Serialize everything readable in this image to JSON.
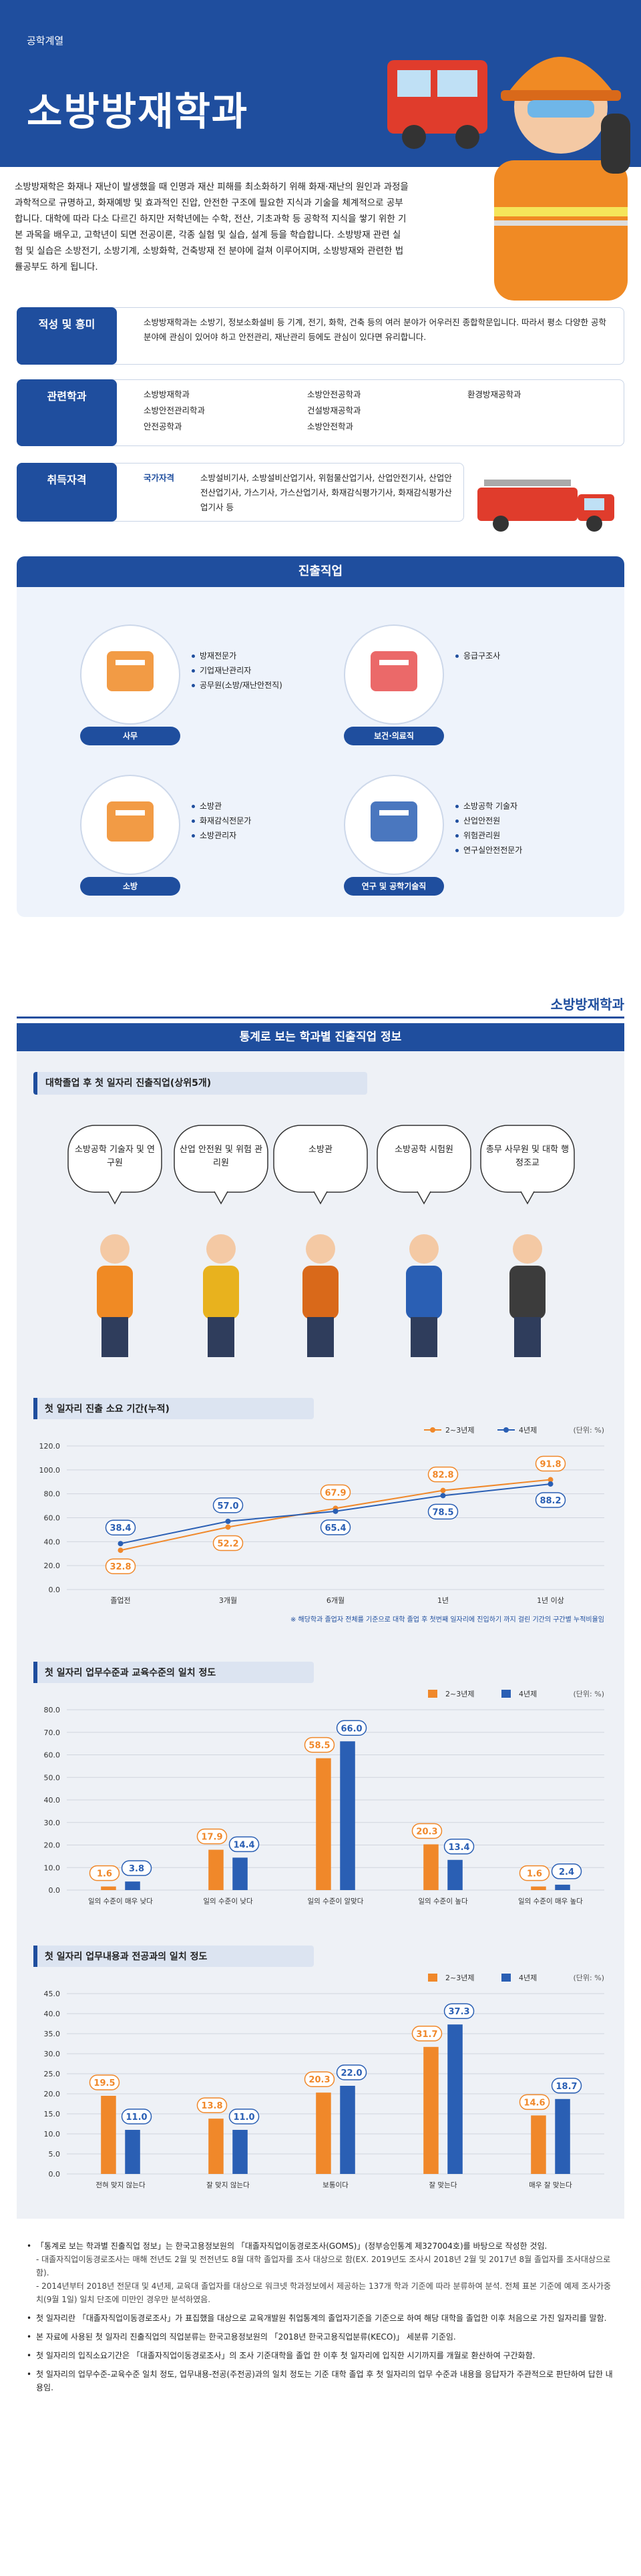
{
  "header": {
    "category": "공학계열",
    "title": "소방방재학과"
  },
  "intro": "소방방재학은 화재나 재난이 발생했을 때 인명과 재산 피해를 최소화하기 위해 화재·재난의 원인과 과정을 과학적으로 규명하고, 화재예방 및 효과적인 진압, 안전한 구조에 필요한 지식과 기술을 체계적으로 공부합니다. 대학에 따라 다소 다르긴 하지만 저학년에는 수학, 전산, 기초과학 등 공학적 지식을 쌓기 위한 기본 과목을 배우고, 고학년이 되면 전공이론, 각종 실험 및 실습, 설계 등을 학습합니다. 소방방재 관련 실험 및 실습은 소방전기, 소방기계, 소방화학, 건축방재 전 분야에 걸쳐 이루어지며, 소방방재와 관련한 법률공부도 하게 됩니다.",
  "aptitude": {
    "label": "적성 및 흥미",
    "text": "소방방재학과는 소방기, 정보소화설비 등 기계, 전기, 화학, 건축 등의 여러 분야가 어우러진 종합학문입니다. 따라서 평소 다양한 공학분야에 관심이 있어야 하고 안전관리, 재난관리 등에도 관심이 있다면 유리합니다."
  },
  "related": {
    "label": "관련학과",
    "columns": [
      [
        "소방방재학과",
        "소방안전관리학과",
        "안전공학과"
      ],
      [
        "소방안전공학과",
        "건설방재공학과",
        "소방안전학과"
      ],
      [
        "환경방재공학과"
      ]
    ]
  },
  "licenses": {
    "label": "취득자격",
    "kind": "국가자격",
    "text": "소방설비기사, 소방설비산업기사, 위험물산업기사, 산업안전기사, 산업안전산업기사, 가스기사, 가스산업기사, 화재감식평가기사, 화재감식평가산업기사 등"
  },
  "careers": {
    "title": "진출직업",
    "groups": [
      {
        "label": "사무",
        "jobs": [
          "방재전문가",
          "기업재난관리자",
          "공무원(소방/재난안전직)"
        ]
      },
      {
        "label": "보건·의료직",
        "jobs": [
          "응급구조사"
        ]
      },
      {
        "label": "소방",
        "jobs": [
          "소방관",
          "화재감식전문가",
          "소방관리자"
        ]
      },
      {
        "label": "연구 및 공학기술직",
        "jobs": [
          "소방공학 기술자",
          "산업안전원",
          "위험관리원",
          "연구실안전전문가"
        ]
      }
    ]
  },
  "stats": {
    "brand": "소방방재학과",
    "title": "통계로 보는 학과별 진출직업 정보",
    "top_title": "대학졸업 후 첫 일자리 진출직업(상위5개)",
    "top_jobs": [
      "소방공학 기술자 및 연구원",
      "산업 안전원 및 위험 관리원",
      "소방관",
      "소방공학 시험원",
      "총무 사무원 및 대학 행정조교"
    ],
    "notes": [
      {
        "text": "「통계로 보는 학과별 진출직업 정보」는 한국고용정보원의 「대졸자직업이동경로조사(GOMS)」(정부승인통계 제327004호)를 바탕으로 작성한 것임.",
        "details": [
          "- 대졸자직업이동경로조사는 매해 전년도 2월 및 전전년도 8월 대학 졸업자를 조사 대상으로 함(EX. 2019년도 조사시 2018년 2월 및 2017년 8월 졸업자를 조사대상으로 함).",
          "- 2014년부터 2018년 전문대 및 4년제, 교육대 졸업자를 대상으로 워크넷 학과정보에서 제공하는 137개 학과 기준에 따라 분류하여 분석. 전체 표본 기준에 예제 조사가중치(9월 1일) 일치 단조에 미만인 경우만 분석하였음."
        ]
      },
      {
        "text": "첫 일자리란 「대졸자직업이동경로조사」가 표집했을 대상으로 교육개발원 취업통계의 졸업자기준을 기준으로 하여 해당 대학을 졸업한 이후 처음으로 가진 일자리를 말함."
      },
      {
        "text": "본 자료에 사용된 첫 일자리 진출직업의 직업분류는 한국고용정보원의 「2018년 한국고용직업분류(KECO)」 세분류 기준임."
      },
      {
        "text": "첫 일자리의 입직소요기간은 「대졸자직업이동경로조사」의 조사 기준대학을 졸업 한 이후 첫 일자리에 입직한 시기까지를 개월로 환산하여 구간화함."
      },
      {
        "text": "첫 일자리의 업무수준-교육수준 일치 정도, 업무내용-전공(주전공)과의 일치 정도는 기준 대학 졸업 후 첫 일자리의 업무 수준과 내용을 응답자가 주관적으로 판단하여 답한 내용임."
      }
    ]
  },
  "chart_data": [
    {
      "type": "line",
      "title": "첫 일자리 진출 소요 기간(누적)",
      "unit": "(단위: %)",
      "legend": "top-right",
      "grid": true,
      "categories": [
        "졸업전",
        "3개월",
        "6개월",
        "1년",
        "1년 이상"
      ],
      "series": [
        {
          "name": "2~3년제",
          "color": "#f0882a",
          "values": [
            32.8,
            52.2,
            67.9,
            82.8,
            91.8
          ],
          "value_labels": [
            "32.8",
            "52.2",
            "67.9",
            "82.8",
            "91.8"
          ]
        },
        {
          "name": "4년제",
          "color": "#2a5fb4",
          "values": [
            38.4,
            57.0,
            65.4,
            78.5,
            88.2
          ],
          "value_labels": [
            "38.4",
            "57.0",
            "65.4",
            "78.5",
            "88.2"
          ]
        }
      ],
      "ylim": [
        0,
        120
      ],
      "yticks": [
        {
          "value": 0,
          "label": "0.0"
        },
        {
          "value": 20,
          "label": "20.0"
        },
        {
          "value": 40,
          "label": "40.0"
        },
        {
          "value": 60,
          "label": "60.0"
        },
        {
          "value": 80,
          "label": "80.0"
        },
        {
          "value": 100,
          "label": "100.0"
        },
        {
          "value": 120,
          "label": "120.0"
        }
      ],
      "note": "※ 해당학과 졸업자 전체를 기준으로 대학 졸업 후 첫번째 일자리에 진입하기 까지 걸린 기간의 구간별 누적비율임"
    },
    {
      "type": "bar",
      "title": "첫 일자리 업무수준과 교육수준의 일치 정도",
      "unit": "(단위: %)",
      "legend": "top-right",
      "grid": true,
      "categories": [
        "일의 수준이 매우 낮다",
        "일의 수준이 낮다",
        "일의 수준이 알맞다",
        "일의 수준이 높다",
        "일의 수준이 매우 높다"
      ],
      "series": [
        {
          "name": "2~3년제",
          "color": "#f0882a",
          "values": [
            1.6,
            17.9,
            58.5,
            20.3,
            1.6
          ]
        },
        {
          "name": "4년제",
          "color": "#2a5fb4",
          "values": [
            3.8,
            14.4,
            66.0,
            13.4,
            2.4
          ],
          "value_labels": [
            "3.8",
            "14.4",
            "66.0",
            "13.4",
            "2.4"
          ]
        }
      ],
      "ylim": [
        0,
        80
      ],
      "yticks": [
        {
          "value": 0,
          "label": "0.0"
        },
        {
          "value": 10,
          "label": "10.0"
        },
        {
          "value": 20,
          "label": "20.0"
        },
        {
          "value": 30,
          "label": "30.0"
        },
        {
          "value": 40,
          "label": "40.0"
        },
        {
          "value": 50,
          "label": "50.0"
        },
        {
          "value": 60,
          "label": "60.0"
        },
        {
          "value": 70,
          "label": "70.0"
        },
        {
          "value": 80,
          "label": "80.0"
        }
      ]
    },
    {
      "type": "bar",
      "title": "첫 일자리 업무내용과 전공과의 일치 정도",
      "unit": "(단위: %)",
      "legend": "top-right",
      "grid": true,
      "categories": [
        "전혀 맞지 않는다",
        "잘 맞지 않는다",
        "보통이다",
        "잘 맞는다",
        "매우 잘 맞는다"
      ],
      "series": [
        {
          "name": "2~3년제",
          "color": "#f0882a",
          "values": [
            19.5,
            13.8,
            20.3,
            31.7,
            14.6
          ]
        },
        {
          "name": "4년제",
          "color": "#2a5fb4",
          "values": [
            11.0,
            11.0,
            22.0,
            37.3,
            18.7
          ],
          "value_labels": [
            "11.0",
            "11.0",
            "22.0",
            "37.3",
            "18.7"
          ]
        }
      ],
      "ylim": [
        0,
        45
      ],
      "yticks": [
        {
          "value": 0,
          "label": "0.0"
        },
        {
          "value": 5,
          "label": "5.0"
        },
        {
          "value": 10,
          "label": "10.0"
        },
        {
          "value": 15,
          "label": "15.0"
        },
        {
          "value": 20,
          "label": "20.0"
        },
        {
          "value": 25,
          "label": "25.0"
        },
        {
          "value": 30,
          "label": "30.0"
        },
        {
          "value": 35,
          "label": "35.0"
        },
        {
          "value": 40,
          "label": "40.0"
        },
        {
          "value": 45,
          "label": "45.0"
        }
      ]
    }
  ]
}
